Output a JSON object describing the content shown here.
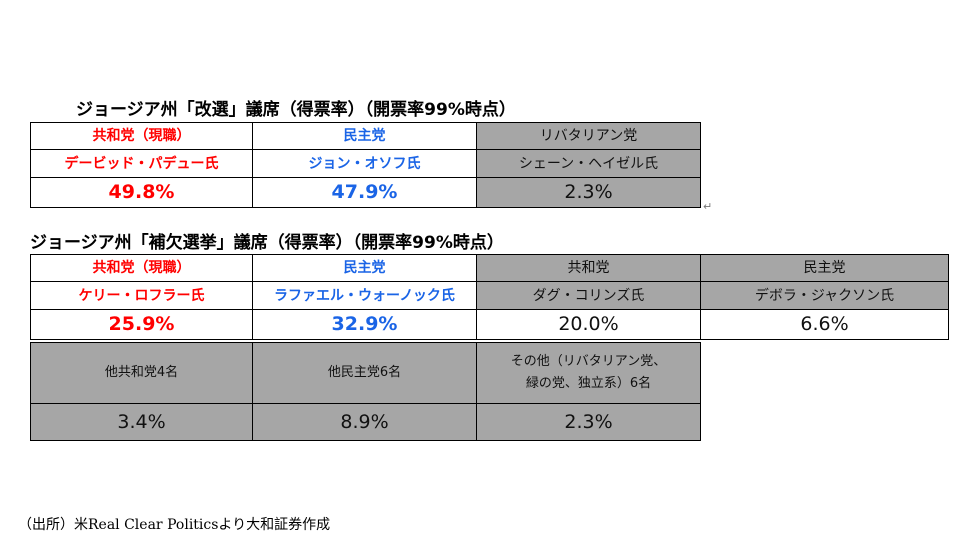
{
  "section1": {
    "title": "ジョージア州「改選」議席（得票率）（開票率99%時点）",
    "candidates": [
      {
        "party": "共和党（現職）",
        "name": "デービッド・パデュー氏",
        "pct": "49.8%",
        "color": "#ff0000"
      },
      {
        "party": "民主党",
        "name": "ジョン・オソフ氏",
        "pct": "47.9%",
        "color": "#1a64e6"
      },
      {
        "party": "リバタリアン党",
        "name": "シェーン・ヘイゼル氏",
        "pct": "2.3%",
        "color": "#111111"
      }
    ]
  },
  "section2": {
    "title": "ジョージア州「補欠選挙」議席（得票率）（開票率99%時点）",
    "candidates": [
      {
        "party": "共和党（現職）",
        "name": "ケリー・ロフラー氏",
        "pct": "25.9%",
        "color": "#ff0000"
      },
      {
        "party": "民主党",
        "name": "ラファエル・ウォーノック氏",
        "pct": "32.9%",
        "color": "#1a64e6"
      },
      {
        "party": "共和党",
        "name": "ダグ・コリンズ氏",
        "pct": "20.0%",
        "color": "#111111"
      },
      {
        "party": "民主党",
        "name": "デボラ・ジャクソン氏",
        "pct": "6.6%",
        "color": "#111111"
      }
    ],
    "others": [
      {
        "label": "他共和党4名",
        "pct": "3.4%"
      },
      {
        "label": "他民主党6名",
        "pct": "8.9%"
      },
      {
        "label_line1": "その他（リバタリアン党、",
        "label_line2": "緑の党、独立系）6名",
        "pct": "2.3%"
      }
    ]
  },
  "source": "（出所）米Real Clear Politicsより大和証券作成"
}
